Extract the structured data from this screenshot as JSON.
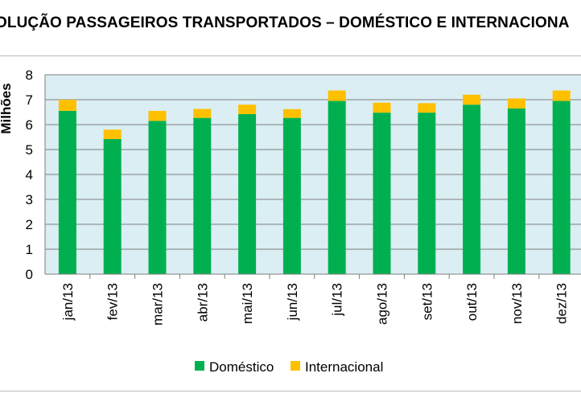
{
  "chart_data": {
    "type": "bar",
    "stacked": true,
    "title": "OLUÇÃO PASSAGEIROS TRANSPORTADOS – DOMÉSTICO E INTERNACIONA",
    "xlabel": "",
    "ylabel": "Milhões",
    "ylim": [
      0,
      8
    ],
    "yticks": [
      "0",
      "1",
      "2",
      "3",
      "4",
      "5",
      "6",
      "7",
      "8"
    ],
    "grid": true,
    "legend_position": "bottom",
    "categories": [
      "jan/13",
      "fev/13",
      "mar/13",
      "abr/13",
      "mai/13",
      "jun/13",
      "jul/13",
      "ago/13",
      "set/13",
      "out/13",
      "nov/13",
      "dez/13"
    ],
    "series": [
      {
        "name": "Doméstico",
        "color": "#00b050",
        "values": [
          6.55,
          5.42,
          6.15,
          6.27,
          6.42,
          6.27,
          6.95,
          6.48,
          6.48,
          6.8,
          6.65,
          6.95
        ]
      },
      {
        "name": "Internacional",
        "color": "#ffc000",
        "values": [
          0.45,
          0.38,
          0.4,
          0.36,
          0.38,
          0.35,
          0.42,
          0.4,
          0.38,
          0.4,
          0.4,
          0.42
        ]
      }
    ],
    "plot_background": "#daeef3",
    "grid_color": "#7f7f7f"
  }
}
